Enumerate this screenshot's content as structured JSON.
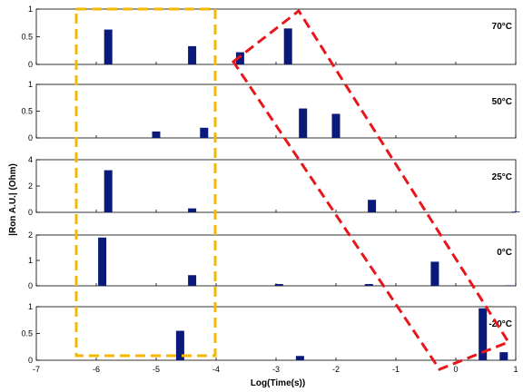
{
  "chart_data": {
    "type": "bar",
    "xlabel": "Log(Time(s))",
    "ylabel": "|Ron A.U.| (Ohm)",
    "xlim": [
      -7,
      1
    ],
    "x_ticks": [
      "-7",
      "-6",
      "-5",
      "-4",
      "-3",
      "-2",
      "-1",
      "0",
      "1"
    ],
    "bar_color": "#0a1a7a",
    "panels": [
      {
        "label": "70°C",
        "ylim": [
          0,
          1
        ],
        "y_ticks": [
          "0",
          "0.5",
          "1"
        ],
        "bars": [
          {
            "x": -5.8,
            "y": 0.63
          },
          {
            "x": -4.4,
            "y": 0.33
          },
          {
            "x": -3.6,
            "y": 0.22
          },
          {
            "x": -2.8,
            "y": 0.65
          }
        ]
      },
      {
        "label": "50°C",
        "ylim": [
          0,
          1
        ],
        "y_ticks": [
          "0",
          "0.5",
          "1"
        ],
        "bars": [
          {
            "x": -5.0,
            "y": 0.12
          },
          {
            "x": -4.2,
            "y": 0.19
          },
          {
            "x": -2.55,
            "y": 0.55
          },
          {
            "x": -2.0,
            "y": 0.45
          }
        ]
      },
      {
        "label": "25°C",
        "ylim": [
          0,
          4
        ],
        "y_ticks": [
          "0",
          "2",
          "4"
        ],
        "bars": [
          {
            "x": -5.8,
            "y": 3.2
          },
          {
            "x": -4.4,
            "y": 0.3
          },
          {
            "x": -1.4,
            "y": 0.95
          },
          {
            "x": 1.0,
            "y": 0.05
          }
        ]
      },
      {
        "label": "0°C",
        "ylim": [
          0,
          2
        ],
        "y_ticks": [
          "0",
          "1",
          "2"
        ],
        "bars": [
          {
            "x": -5.9,
            "y": 1.9
          },
          {
            "x": -4.4,
            "y": 0.42
          },
          {
            "x": -2.95,
            "y": 0.07
          },
          {
            "x": -1.45,
            "y": 0.07
          },
          {
            "x": -0.35,
            "y": 0.95
          },
          {
            "x": 0.9,
            "y": 0.02
          }
        ]
      },
      {
        "label": "-20°C",
        "ylim": [
          0,
          1
        ],
        "y_ticks": [
          "0",
          "0.5",
          "1"
        ],
        "bars": [
          {
            "x": -4.6,
            "y": 0.55
          },
          {
            "x": -2.6,
            "y": 0.08
          },
          {
            "x": 0.45,
            "y": 0.97
          },
          {
            "x": 0.8,
            "y": 0.15
          }
        ]
      }
    ],
    "highlight_colors": {
      "yellow_box": "#f5b800",
      "red_box": "#e8151b"
    }
  }
}
